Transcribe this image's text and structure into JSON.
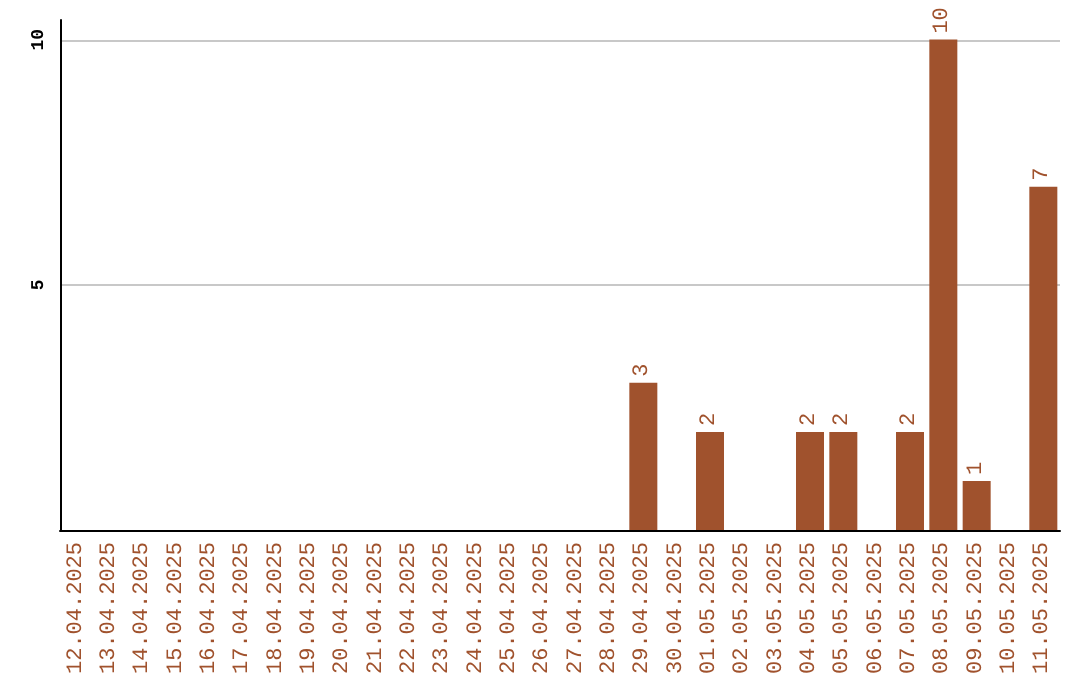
{
  "chart_data": {
    "type": "bar",
    "categories": [
      "12.04.2025",
      "13.04.2025",
      "14.04.2025",
      "15.04.2025",
      "16.04.2025",
      "17.04.2025",
      "18.04.2025",
      "19.04.2025",
      "20.04.2025",
      "21.04.2025",
      "22.04.2025",
      "23.04.2025",
      "24.04.2025",
      "25.04.2025",
      "26.04.2025",
      "27.04.2025",
      "28.04.2025",
      "29.04.2025",
      "30.04.2025",
      "01.05.2025",
      "02.05.2025",
      "03.05.2025",
      "04.05.2025",
      "05.05.2025",
      "06.05.2025",
      "07.05.2025",
      "08.05.2025",
      "09.05.2025",
      "10.05.2025",
      "11.05.2025"
    ],
    "values": [
      0,
      0,
      0,
      0,
      0,
      0,
      0,
      0,
      0,
      0,
      0,
      0,
      0,
      0,
      0,
      0,
      0,
      3,
      0,
      2,
      0,
      0,
      2,
      2,
      0,
      2,
      10,
      1,
      0,
      7
    ],
    "value_labels": [
      null,
      null,
      null,
      null,
      null,
      null,
      null,
      null,
      null,
      null,
      null,
      null,
      null,
      null,
      null,
      null,
      null,
      "3",
      null,
      "2",
      null,
      null,
      "2",
      "2",
      null,
      "2",
      "10",
      "1",
      null,
      "7"
    ],
    "color": "#a0522d",
    "ylim": [
      0,
      10.4
    ],
    "yticks": [
      5,
      10
    ],
    "grid": "y"
  }
}
